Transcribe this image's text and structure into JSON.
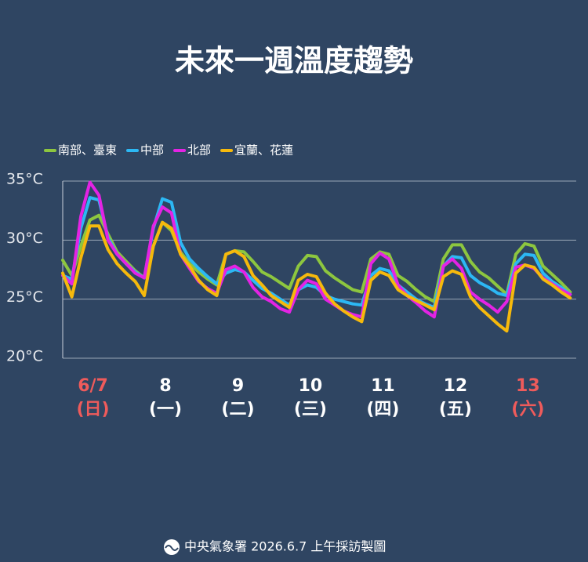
{
  "chart_data": {
    "type": "line",
    "title": "未來一週溫度趨勢",
    "footer": "中央氣象署 2026.6.7 上午採訪製圖",
    "x": [
      2,
      5,
      8,
      11,
      14,
      17,
      20,
      23,
      26,
      29,
      32,
      35,
      38,
      41,
      44,
      47,
      50,
      53,
      56,
      59,
      62,
      65,
      68,
      71,
      74,
      77,
      80,
      83,
      86,
      89,
      92,
      95,
      98,
      101,
      104,
      107,
      110,
      113,
      116,
      119,
      122,
      125,
      128,
      131,
      134,
      137,
      140,
      143,
      146,
      149,
      152,
      155,
      158,
      161,
      164,
      167,
      170
    ],
    "xlim": [
      2,
      172
    ],
    "xticks": [
      {
        "value": 12,
        "label": "6/7",
        "weekday": "(日)",
        "highlight": true
      },
      {
        "value": 36,
        "label": "8",
        "weekday": "(一)",
        "highlight": false
      },
      {
        "value": 60,
        "label": "9",
        "weekday": "(二)",
        "highlight": false
      },
      {
        "value": 84,
        "label": "10",
        "weekday": "(三)",
        "highlight": false
      },
      {
        "value": 108,
        "label": "11",
        "weekday": "(四)",
        "highlight": false
      },
      {
        "value": 132,
        "label": "12",
        "weekday": "(五)",
        "highlight": false
      },
      {
        "value": 156,
        "label": "13",
        "weekday": "(六)",
        "highlight": true
      }
    ],
    "highlight_color": "#ef5b5b",
    "ylim": [
      20,
      35
    ],
    "yticks": [
      {
        "value": 20,
        "label": "20°C"
      },
      {
        "value": 25,
        "label": "25°C"
      },
      {
        "value": 30,
        "label": "30°C"
      },
      {
        "value": 35,
        "label": "35°C"
      }
    ],
    "grid": true,
    "legend": "top-left",
    "series": [
      {
        "name": "南部、臺東",
        "color": "#8dc63f",
        "values": [
          28.3,
          27,
          29.5,
          31.7,
          32.1,
          30.5,
          29,
          28.2,
          27.4,
          26.8,
          29.5,
          31.5,
          30.8,
          29,
          28,
          27.3,
          26.7,
          26.2,
          28.8,
          29.1,
          29,
          28.2,
          27.3,
          26.9,
          26.4,
          25.9,
          27.8,
          28.7,
          28.6,
          27.4,
          26.8,
          26.3,
          25.8,
          25.6,
          28.4,
          29,
          28.8,
          27,
          26.5,
          25.8,
          25.2,
          24.8,
          28.4,
          29.6,
          29.6,
          28.2,
          27.3,
          26.8,
          26.1,
          25.4,
          28.8,
          29.7,
          29.5,
          27.8,
          27.1,
          26.4,
          25.6
        ]
      },
      {
        "name": "中部",
        "color": "#2cb8f4",
        "values": [
          27,
          26.7,
          31,
          33.6,
          33.4,
          30.2,
          28.8,
          28,
          27.3,
          26.8,
          31,
          33.5,
          33.2,
          29.8,
          28.4,
          27.6,
          26.9,
          26.3,
          27.2,
          27.5,
          27.3,
          26.6,
          25.9,
          25.5,
          25,
          24.5,
          25.8,
          26.2,
          26,
          25.3,
          25,
          24.8,
          24.6,
          24.5,
          27,
          27.6,
          27.4,
          26.2,
          25.6,
          25,
          24.6,
          24.3,
          27.8,
          28.6,
          28.5,
          27,
          26.4,
          26,
          25.5,
          25.3,
          28,
          28.8,
          28.7,
          27.2,
          26.5,
          26,
          25.4
        ]
      },
      {
        "name": "北部",
        "color": "#e423e4",
        "values": [
          27,
          26.3,
          32,
          34.9,
          33.8,
          30,
          28.8,
          28,
          27.2,
          26.8,
          31.2,
          32.8,
          32.3,
          28.8,
          27.6,
          26.5,
          25.9,
          25.5,
          27.5,
          27.8,
          27.3,
          26,
          25.2,
          24.8,
          24.2,
          23.9,
          25.8,
          26.6,
          26.3,
          25,
          24.5,
          24,
          23.7,
          23.5,
          28,
          28.9,
          28.4,
          26.2,
          25.3,
          24.7,
          24,
          23.5,
          27.8,
          28.4,
          27.6,
          25.6,
          25,
          24.5,
          23.9,
          24.8,
          27.7,
          27.9,
          27.6,
          26.8,
          26.3,
          25.8,
          25.4
        ]
      },
      {
        "name": "宜蘭、花蓮",
        "color": "#f6b90c",
        "values": [
          27.2,
          25.2,
          28.5,
          31.2,
          31.2,
          29.2,
          28,
          27.2,
          26.5,
          25.3,
          29.5,
          31.5,
          31,
          28.8,
          27.8,
          26.6,
          25.8,
          25.3,
          28.8,
          29.1,
          28.6,
          27,
          26.2,
          25.3,
          24.8,
          24.3,
          26.6,
          27.1,
          26.9,
          25.5,
          24.6,
          24,
          23.5,
          23.1,
          26.6,
          27.3,
          27,
          25.8,
          25.3,
          24.9,
          24.5,
          24.1,
          26.9,
          27.4,
          27.1,
          25.2,
          24.3,
          23.6,
          22.9,
          22.3,
          27.2,
          27.9,
          27.7,
          26.7,
          26.2,
          25.6,
          25.1
        ]
      }
    ]
  }
}
